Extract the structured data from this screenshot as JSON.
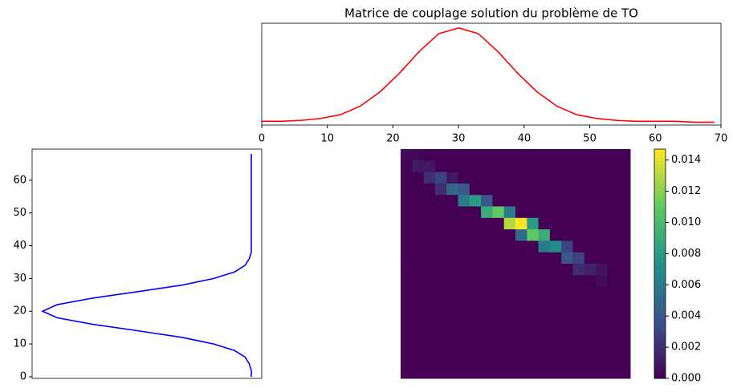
{
  "chart_data": [
    {
      "type": "line",
      "title": "Matrice de couplage solution du problème de TO",
      "x": [
        0,
        3,
        6,
        9,
        12,
        15,
        18,
        21,
        24,
        27,
        30,
        33,
        36,
        39,
        42,
        45,
        48,
        51,
        54,
        57,
        60,
        63,
        66,
        69
      ],
      "series": [
        {
          "color": "#ff0000",
          "values": [
            0.01,
            0.01,
            0.02,
            0.04,
            0.08,
            0.17,
            0.32,
            0.52,
            0.75,
            0.94,
            1.0,
            0.94,
            0.75,
            0.52,
            0.32,
            0.17,
            0.08,
            0.04,
            0.02,
            0.01,
            0.01,
            0.01,
            0.0,
            0.0
          ]
        }
      ],
      "xlim": [
        0,
        70
      ],
      "xticks": [
        0,
        10,
        20,
        30,
        40,
        50,
        60,
        70
      ],
      "ylim": [
        -0.03,
        1.05
      ]
    },
    {
      "type": "line",
      "orientation": "vertical",
      "x": [
        0,
        2,
        4,
        6,
        8,
        10,
        12,
        14,
        16,
        18,
        20,
        22,
        24,
        26,
        28,
        30,
        32,
        34,
        36,
        38,
        40,
        42,
        44,
        46,
        48,
        50,
        52,
        54,
        56,
        58,
        60,
        62,
        64,
        66,
        68
      ],
      "series": [
        {
          "color": "#0000ff",
          "values": [
            0,
            0,
            0.01,
            0.03,
            0.08,
            0.18,
            0.33,
            0.54,
            0.76,
            0.93,
            1.0,
            0.93,
            0.76,
            0.54,
            0.33,
            0.18,
            0.08,
            0.03,
            0.01,
            0,
            0,
            0,
            0,
            0,
            0,
            0,
            0,
            0,
            0,
            0,
            0,
            0,
            0,
            0,
            0
          ]
        }
      ],
      "xlim": [
        69.5,
        -0.5
      ],
      "xticks": [
        0,
        10,
        20,
        30,
        40,
        50,
        60
      ],
      "ylim": [
        1.05,
        -0.05
      ]
    },
    {
      "type": "heatmap",
      "colormap": "viridis",
      "values": [
        [
          0.0005,
          0.0003,
          0,
          0,
          0,
          0,
          0,
          0,
          0,
          0,
          0,
          0,
          0,
          0,
          0,
          0,
          0,
          0,
          0,
          0
        ],
        [
          0,
          0.0012,
          0.001,
          0,
          0,
          0,
          0,
          0,
          0,
          0,
          0,
          0,
          0,
          0,
          0,
          0,
          0,
          0,
          0,
          0
        ],
        [
          0,
          0,
          0.002,
          0.003,
          0.001,
          0,
          0,
          0,
          0,
          0,
          0,
          0,
          0,
          0,
          0,
          0,
          0,
          0,
          0,
          0
        ],
        [
          0,
          0,
          0,
          0.002,
          0.005,
          0.004,
          0,
          0,
          0,
          0,
          0,
          0,
          0,
          0,
          0,
          0,
          0,
          0,
          0,
          0
        ],
        [
          0,
          0,
          0,
          0,
          0,
          0.006,
          0.008,
          0.004,
          0,
          0,
          0,
          0,
          0,
          0,
          0,
          0,
          0,
          0,
          0,
          0
        ],
        [
          0,
          0,
          0,
          0,
          0,
          0,
          0,
          0.009,
          0.011,
          0.006,
          0,
          0,
          0,
          0,
          0,
          0,
          0,
          0,
          0,
          0
        ],
        [
          0,
          0,
          0,
          0,
          0,
          0,
          0,
          0,
          0,
          0.013,
          0.0147,
          0.008,
          0,
          0,
          0,
          0,
          0,
          0,
          0,
          0
        ],
        [
          0,
          0,
          0,
          0,
          0,
          0,
          0,
          0,
          0,
          0,
          0.005,
          0.011,
          0.009,
          0,
          0,
          0,
          0,
          0,
          0,
          0
        ],
        [
          0,
          0,
          0,
          0,
          0,
          0,
          0,
          0,
          0,
          0,
          0,
          0,
          0.006,
          0.007,
          0.003,
          0,
          0,
          0,
          0,
          0
        ],
        [
          0,
          0,
          0,
          0,
          0,
          0,
          0,
          0,
          0,
          0,
          0,
          0,
          0,
          0,
          0.004,
          0.003,
          0,
          0,
          0,
          0
        ],
        [
          0,
          0,
          0,
          0,
          0,
          0,
          0,
          0,
          0,
          0,
          0,
          0,
          0,
          0,
          0,
          0.002,
          0.0015,
          0.0008,
          0,
          0
        ],
        [
          0,
          0,
          0,
          0,
          0,
          0,
          0,
          0,
          0,
          0,
          0,
          0,
          0,
          0,
          0,
          0,
          0,
          0.0005,
          0,
          0
        ],
        [
          0,
          0,
          0,
          0,
          0,
          0,
          0,
          0,
          0,
          0,
          0,
          0,
          0,
          0,
          0,
          0,
          0,
          0,
          0,
          0
        ],
        [
          0,
          0,
          0,
          0,
          0,
          0,
          0,
          0,
          0,
          0,
          0,
          0,
          0,
          0,
          0,
          0,
          0,
          0,
          0,
          0
        ],
        [
          0,
          0,
          0,
          0,
          0,
          0,
          0,
          0,
          0,
          0,
          0,
          0,
          0,
          0,
          0,
          0,
          0,
          0,
          0,
          0
        ],
        [
          0,
          0,
          0,
          0,
          0,
          0,
          0,
          0,
          0,
          0,
          0,
          0,
          0,
          0,
          0,
          0,
          0,
          0,
          0,
          0
        ],
        [
          0,
          0,
          0,
          0,
          0,
          0,
          0,
          0,
          0,
          0,
          0,
          0,
          0,
          0,
          0,
          0,
          0,
          0,
          0,
          0
        ],
        [
          0,
          0,
          0,
          0,
          0,
          0,
          0,
          0,
          0,
          0,
          0,
          0,
          0,
          0,
          0,
          0,
          0,
          0,
          0,
          0
        ],
        [
          0,
          0,
          0,
          0,
          0,
          0,
          0,
          0,
          0,
          0,
          0,
          0,
          0,
          0,
          0,
          0,
          0,
          0,
          0,
          0
        ],
        [
          0,
          0,
          0,
          0,
          0,
          0,
          0,
          0,
          0,
          0,
          0,
          0,
          0,
          0,
          0,
          0,
          0,
          0,
          0,
          0
        ]
      ],
      "zlim": [
        0,
        0.0147
      ],
      "zticks": [
        {
          "value": 0,
          "label": "0.000"
        },
        {
          "value": 0.002,
          "label": "0.002"
        },
        {
          "value": 0.004,
          "label": "0.004"
        },
        {
          "value": 0.006,
          "label": "0.006"
        },
        {
          "value": 0.008,
          "label": "0.008"
        },
        {
          "value": 0.01,
          "label": "0.010"
        },
        {
          "value": 0.012,
          "label": "0.012"
        },
        {
          "value": 0.014,
          "label": "0.014"
        }
      ]
    }
  ]
}
